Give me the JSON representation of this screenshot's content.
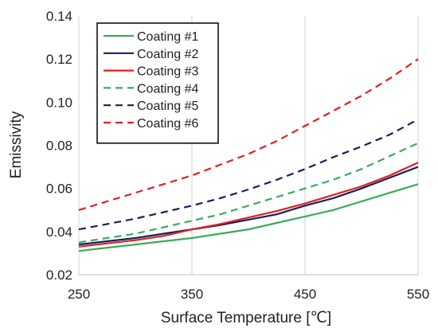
{
  "chart_data": {
    "type": "line",
    "xlabel": "Surface Temperature [℃]",
    "ylabel": "Emissivity",
    "xlim": [
      250,
      550
    ],
    "ylim": [
      0.02,
      0.14
    ],
    "x_ticks": [
      "250",
      "350",
      "450",
      "550"
    ],
    "y_ticks": [
      "0.02",
      "0.04",
      "0.06",
      "0.08",
      "0.10",
      "0.12",
      "0.14"
    ],
    "grid": "vertical",
    "legend_position": "top-left",
    "x": [
      250,
      275,
      300,
      325,
      350,
      375,
      400,
      425,
      450,
      475,
      500,
      525,
      550
    ],
    "series": [
      {
        "name": "Coating #1",
        "color": "#3aab5a",
        "dash": "solid",
        "values": [
          0.031,
          0.0325,
          0.034,
          0.0355,
          0.037,
          0.039,
          0.041,
          0.044,
          0.047,
          0.05,
          0.054,
          0.058,
          0.062
        ]
      },
      {
        "name": "Coating #2",
        "color": "#14215e",
        "dash": "solid",
        "values": [
          0.034,
          0.0355,
          0.037,
          0.039,
          0.041,
          0.043,
          0.0455,
          0.048,
          0.052,
          0.0555,
          0.06,
          0.065,
          0.07
        ]
      },
      {
        "name": "Coating #3",
        "color": "#e02020",
        "dash": "solid",
        "values": [
          0.033,
          0.0345,
          0.036,
          0.038,
          0.041,
          0.0435,
          0.0465,
          0.0495,
          0.053,
          0.057,
          0.061,
          0.066,
          0.072
        ]
      },
      {
        "name": "Coating #4",
        "color": "#3aab5a",
        "dash": "dashed",
        "values": [
          0.035,
          0.037,
          0.039,
          0.042,
          0.045,
          0.048,
          0.052,
          0.056,
          0.06,
          0.064,
          0.069,
          0.075,
          0.081
        ]
      },
      {
        "name": "Coating #5",
        "color": "#14215e",
        "dash": "dashed",
        "values": [
          0.041,
          0.0435,
          0.046,
          0.049,
          0.052,
          0.0555,
          0.0595,
          0.064,
          0.069,
          0.0745,
          0.0795,
          0.085,
          0.092
        ]
      },
      {
        "name": "Coating #6",
        "color": "#e02020",
        "dash": "dashed",
        "values": [
          0.05,
          0.054,
          0.058,
          0.062,
          0.066,
          0.071,
          0.076,
          0.082,
          0.089,
          0.096,
          0.103,
          0.111,
          0.12
        ]
      }
    ]
  }
}
